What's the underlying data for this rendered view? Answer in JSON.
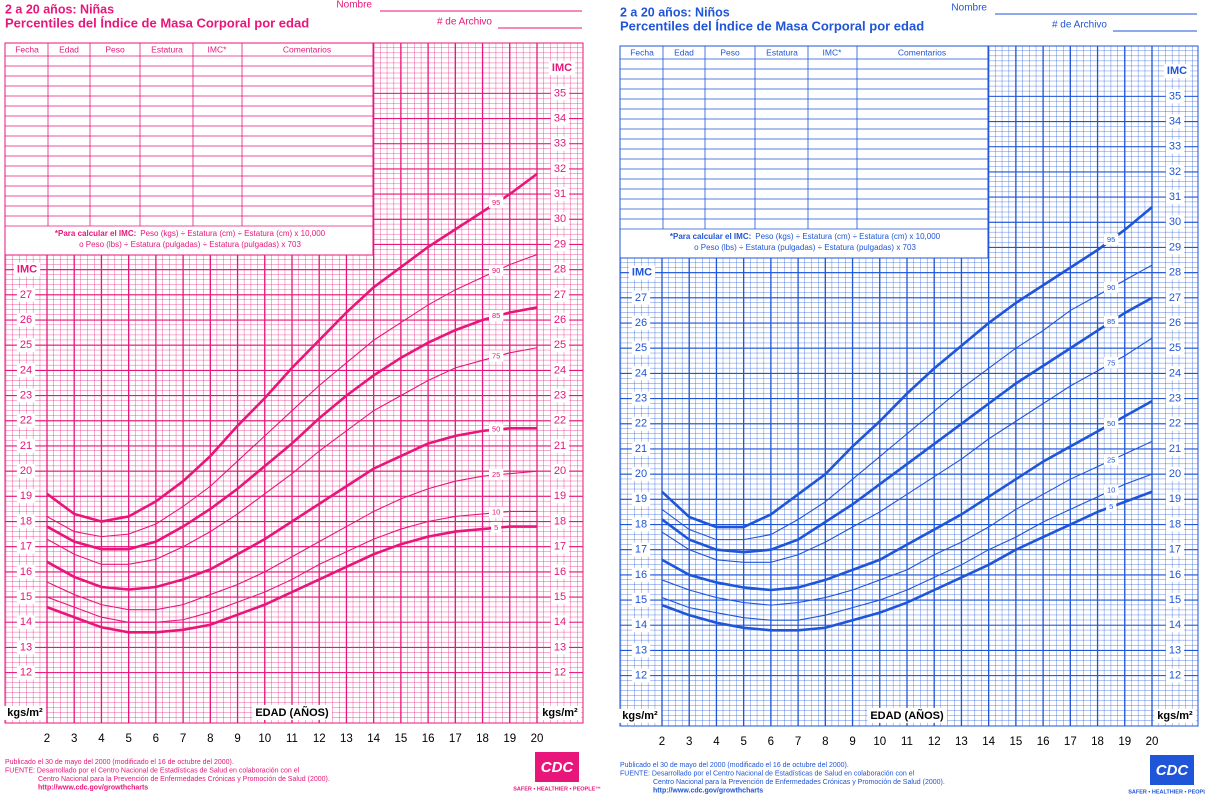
{
  "chart_data": [
    {
      "type": "line",
      "color": "#e8167a",
      "title": "2 a 20 años: Niñas",
      "subtitle": "Percentiles del Índice de Masa Corporal por edad",
      "name_label": "Nombre",
      "file_label": "# de Archivo",
      "table_headers": [
        "Fecha",
        "Edad",
        "Peso",
        "Estatura",
        "IMC*",
        "Comentarios"
      ],
      "formula": [
        "*Para calcular el IMC:",
        "Peso (kgs) ÷ Estatura (cm) ÷ Estatura (cm) x 10,000",
        "o Peso (lbs) ÷ Estatura (pulgadas) ÷ Estatura (pulgadas) x 703"
      ],
      "y_label": "IMC",
      "unit_label": "kgs/m²",
      "x_label": "EDAD (AÑOS)",
      "x": [
        2,
        3,
        4,
        5,
        6,
        7,
        8,
        9,
        10,
        11,
        12,
        13,
        14,
        15,
        16,
        17,
        18,
        19,
        20
      ],
      "xlim": [
        2,
        20
      ],
      "xticks": [
        2,
        3,
        4,
        5,
        6,
        7,
        8,
        9,
        10,
        11,
        12,
        13,
        14,
        15,
        16,
        17,
        18,
        19,
        20
      ],
      "ylim": [
        10,
        37
      ],
      "yticks": [
        12,
        13,
        14,
        15,
        16,
        17,
        18,
        19,
        20,
        21,
        22,
        23,
        24,
        25,
        26,
        27
      ],
      "y2lim": [
        10,
        37
      ],
      "y2ticks": [
        12,
        13,
        14,
        15,
        16,
        17,
        18,
        19,
        20,
        21,
        22,
        23,
        24,
        25,
        26,
        27,
        28,
        29,
        30,
        31,
        32,
        33,
        34,
        35
      ],
      "grid": true,
      "series": [
        {
          "name": "95",
          "color": "#e8167a",
          "bold": true,
          "values": [
            19.1,
            18.3,
            18.0,
            18.2,
            18.8,
            19.6,
            20.6,
            21.8,
            22.9,
            24.1,
            25.2,
            26.3,
            27.3,
            28.1,
            28.9,
            29.6,
            30.3,
            31.0,
            31.8
          ]
        },
        {
          "name": "90",
          "color": "#e8167a",
          "bold": false,
          "values": [
            18.2,
            17.6,
            17.4,
            17.5,
            17.9,
            18.6,
            19.4,
            20.4,
            21.4,
            22.4,
            23.4,
            24.3,
            25.2,
            25.9,
            26.6,
            27.2,
            27.7,
            28.2,
            28.6
          ]
        },
        {
          "name": "85",
          "color": "#e8167a",
          "bold": true,
          "values": [
            17.8,
            17.2,
            16.9,
            16.9,
            17.2,
            17.8,
            18.5,
            19.3,
            20.2,
            21.1,
            22.1,
            23.0,
            23.8,
            24.5,
            25.1,
            25.6,
            26.0,
            26.3,
            26.5
          ]
        },
        {
          "name": "75",
          "color": "#e8167a",
          "bold": false,
          "values": [
            17.3,
            16.7,
            16.3,
            16.3,
            16.5,
            17.0,
            17.6,
            18.3,
            19.1,
            19.9,
            20.8,
            21.6,
            22.4,
            23.0,
            23.6,
            24.1,
            24.4,
            24.7,
            24.9
          ]
        },
        {
          "name": "50",
          "color": "#e8167a",
          "bold": true,
          "values": [
            16.4,
            15.8,
            15.4,
            15.3,
            15.4,
            15.7,
            16.1,
            16.7,
            17.3,
            18.0,
            18.7,
            19.4,
            20.1,
            20.6,
            21.1,
            21.4,
            21.6,
            21.7,
            21.7
          ]
        },
        {
          "name": "25",
          "color": "#e8167a",
          "bold": false,
          "values": [
            15.6,
            15.1,
            14.7,
            14.5,
            14.5,
            14.7,
            15.1,
            15.5,
            16.0,
            16.6,
            17.2,
            17.8,
            18.4,
            18.9,
            19.3,
            19.6,
            19.8,
            19.9,
            20.0
          ]
        },
        {
          "name": "10",
          "color": "#e8167a",
          "bold": false,
          "values": [
            15.0,
            14.6,
            14.2,
            14.0,
            14.0,
            14.1,
            14.4,
            14.8,
            15.2,
            15.7,
            16.3,
            16.8,
            17.3,
            17.7,
            18.0,
            18.2,
            18.3,
            18.4,
            18.4
          ]
        },
        {
          "name": "5",
          "color": "#e8167a",
          "bold": true,
          "values": [
            14.6,
            14.2,
            13.8,
            13.6,
            13.6,
            13.7,
            13.9,
            14.3,
            14.7,
            15.2,
            15.7,
            16.2,
            16.7,
            17.1,
            17.4,
            17.6,
            17.7,
            17.8,
            17.8
          ]
        }
      ],
      "footer": [
        "Publicado el 30 de mayo del 2000 (modificado el 16 de octubre del 2000).",
        "FUENTE: Desarrollado por el Centro Nacional de Estadísticas de Salud en colaboración con el",
        "Centro Nacional para la Prevención de Enfermedades Crónicas y Promoción de Salud (2000).",
        "http://www.cdc.gov/growthcharts"
      ],
      "logo": "CDC",
      "logo_tagline": "SAFER • HEALTHIER • PEOPLE™"
    },
    {
      "type": "line",
      "color": "#1f55d8",
      "title": "2 a 20 años: Niños",
      "subtitle": "Percentiles del Índice de Masa Corporal por edad",
      "name_label": "Nombre",
      "file_label": "# de Archivo",
      "table_headers": [
        "Fecha",
        "Edad",
        "Peso",
        "Estatura",
        "IMC*",
        "Comentarios"
      ],
      "formula": [
        "*Para calcular el IMC:",
        "Peso (kgs) ÷ Estatura (cm) ÷ Estatura (cm) x 10,000",
        "o Peso (lbs) ÷ Estatura (pulgadas) ÷ Estatura (pulgadas) x 703"
      ],
      "y_label": "IMC",
      "unit_label": "kgs/m²",
      "x_label": "EDAD (AÑOS)",
      "x": [
        2,
        3,
        4,
        5,
        6,
        7,
        8,
        9,
        10,
        11,
        12,
        13,
        14,
        15,
        16,
        17,
        18,
        19,
        20
      ],
      "xlim": [
        2,
        20
      ],
      "xticks": [
        2,
        3,
        4,
        5,
        6,
        7,
        8,
        9,
        10,
        11,
        12,
        13,
        14,
        15,
        16,
        17,
        18,
        19,
        20
      ],
      "ylim": [
        10,
        37
      ],
      "yticks": [
        12,
        13,
        14,
        15,
        16,
        17,
        18,
        19,
        20,
        21,
        22,
        23,
        24,
        25,
        26,
        27
      ],
      "y2lim": [
        10,
        37
      ],
      "y2ticks": [
        12,
        13,
        14,
        15,
        16,
        17,
        18,
        19,
        20,
        21,
        22,
        23,
        24,
        25,
        26,
        27,
        28,
        29,
        30,
        31,
        32,
        33,
        34,
        35
      ],
      "grid": true,
      "series": [
        {
          "name": "95",
          "color": "#1f55d8",
          "bold": true,
          "values": [
            19.3,
            18.3,
            17.9,
            17.9,
            18.4,
            19.2,
            20.0,
            21.1,
            22.1,
            23.2,
            24.2,
            25.1,
            26.0,
            26.8,
            27.5,
            28.2,
            28.9,
            29.7,
            30.6
          ]
        },
        {
          "name": "90",
          "color": "#1f55d8",
          "bold": false,
          "values": [
            18.6,
            17.8,
            17.4,
            17.4,
            17.6,
            18.2,
            18.9,
            19.8,
            20.7,
            21.6,
            22.5,
            23.4,
            24.2,
            25.0,
            25.7,
            26.5,
            27.1,
            27.7,
            28.3
          ]
        },
        {
          "name": "85",
          "color": "#1f55d8",
          "bold": true,
          "values": [
            18.2,
            17.4,
            17.0,
            16.9,
            17.0,
            17.4,
            18.1,
            18.8,
            19.6,
            20.4,
            21.2,
            22.0,
            22.8,
            23.6,
            24.3,
            25.0,
            25.7,
            26.4,
            27.0
          ]
        },
        {
          "name": "75",
          "color": "#1f55d8",
          "bold": false,
          "values": [
            17.7,
            17.0,
            16.6,
            16.5,
            16.5,
            16.8,
            17.3,
            17.9,
            18.5,
            19.2,
            19.9,
            20.6,
            21.4,
            22.1,
            22.8,
            23.5,
            24.1,
            24.7,
            25.4
          ]
        },
        {
          "name": "50",
          "color": "#1f55d8",
          "bold": true,
          "values": [
            16.6,
            16.0,
            15.7,
            15.5,
            15.4,
            15.5,
            15.8,
            16.2,
            16.6,
            17.2,
            17.8,
            18.4,
            19.1,
            19.8,
            20.5,
            21.1,
            21.7,
            22.3,
            22.9
          ]
        },
        {
          "name": "25",
          "color": "#1f55d8",
          "bold": false,
          "values": [
            15.8,
            15.4,
            15.1,
            14.9,
            14.8,
            14.9,
            15.1,
            15.4,
            15.8,
            16.2,
            16.8,
            17.3,
            17.9,
            18.6,
            19.2,
            19.8,
            20.3,
            20.8,
            21.3
          ]
        },
        {
          "name": "10",
          "color": "#1f55d8",
          "bold": false,
          "values": [
            15.1,
            14.7,
            14.5,
            14.3,
            14.2,
            14.2,
            14.4,
            14.7,
            15.0,
            15.4,
            15.9,
            16.4,
            17.0,
            17.5,
            18.1,
            18.6,
            19.1,
            19.6,
            20.0
          ]
        },
        {
          "name": "5",
          "color": "#1f55d8",
          "bold": true,
          "values": [
            14.8,
            14.4,
            14.1,
            13.9,
            13.8,
            13.8,
            13.9,
            14.2,
            14.5,
            14.9,
            15.4,
            15.9,
            16.4,
            17.0,
            17.5,
            18.0,
            18.5,
            18.9,
            19.3
          ]
        }
      ],
      "footer": [
        "Publicado el 30 de mayo del 2000 (modificado el 16 de octubre del 2000).",
        "FUENTE: Desarrollado por el Centro Nacional de Estadísticas de Salud en colaboración con el",
        "Centro Nacional para la Prevención de Enfermedades Crónicas y Promoción de Salud (2000).",
        "http://www.cdc.gov/growthcharts"
      ],
      "logo": "CDC",
      "logo_tagline": "SAFER • HEALTHIER • PEOPLE™"
    }
  ]
}
